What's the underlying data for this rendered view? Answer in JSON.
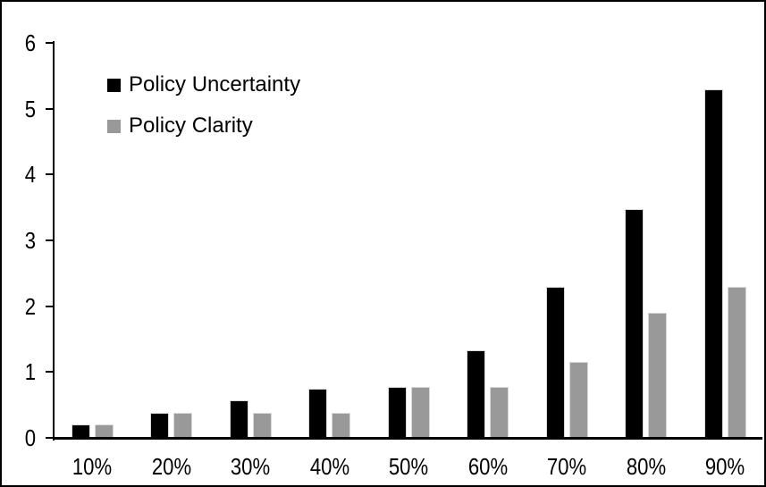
{
  "chart_data": {
    "type": "bar",
    "title": "",
    "xlabel": "",
    "ylabel": "",
    "categories": [
      "10%",
      "20%",
      "30%",
      "40%",
      "50%",
      "60%",
      "70%",
      "80%",
      "90%"
    ],
    "series": [
      {
        "name": "Policy Uncertainty",
        "color": "#000000",
        "values": [
          0.2,
          0.38,
          0.57,
          0.75,
          0.77,
          1.33,
          2.3,
          3.48,
          5.3
        ]
      },
      {
        "name": "Policy Clarity",
        "color": "#999999",
        "values": [
          0.2,
          0.38,
          0.38,
          0.38,
          0.77,
          0.77,
          1.15,
          1.9,
          2.3
        ]
      }
    ],
    "ylim": [
      0,
      6
    ],
    "yticks": [
      "0",
      "1",
      "2",
      "3",
      "4",
      "5",
      "6"
    ],
    "grid": false,
    "legend_position": "upper-left-inside",
    "frame_border_color": "#000000",
    "background_color": "#ffffff"
  }
}
